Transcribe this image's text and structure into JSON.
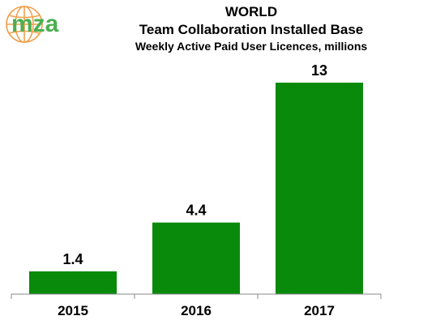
{
  "logo": {
    "text": "mza",
    "icon": "globe-icon",
    "globe_color": "#f0a04b",
    "text_color": "#4caf50"
  },
  "chart_data": {
    "type": "bar",
    "title": "WORLD",
    "subtitle": "Team Collaboration Installed Base",
    "subtitle2": "Weekly Active Paid User Licences, millions",
    "categories": [
      "2015",
      "2016",
      "2017"
    ],
    "values": [
      1.4,
      4.4,
      13
    ],
    "value_labels": [
      "1.4",
      "4.4",
      "13"
    ],
    "bar_color": "#0a8a0a",
    "ylim": [
      0,
      13.2
    ],
    "grid": false,
    "legend": "none"
  }
}
